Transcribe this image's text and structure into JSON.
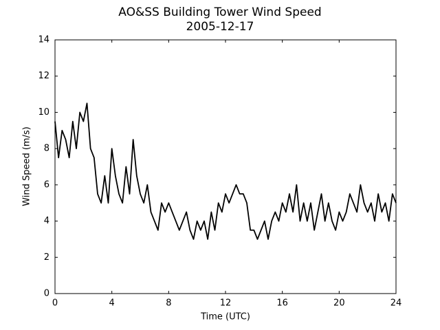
{
  "chart_data": {
    "type": "line",
    "title": "AO&SS Building Tower Wind Speed",
    "subtitle": "2005-12-17",
    "x_label": "Time (UTC)",
    "y_label": "Wind Speed (m/s)",
    "xlim": [
      0,
      24
    ],
    "xticks": [
      0,
      4,
      8,
      12,
      16,
      20,
      24
    ],
    "ylim": [
      0,
      14
    ],
    "yticks": [
      0,
      2,
      4,
      6,
      8,
      10,
      12,
      14
    ],
    "grid": false,
    "x": [
      0,
      0.25,
      0.5,
      0.75,
      1,
      1.25,
      1.5,
      1.75,
      2,
      2.25,
      2.5,
      2.75,
      3,
      3.25,
      3.5,
      3.75,
      4,
      4.25,
      4.5,
      4.75,
      5,
      5.25,
      5.5,
      5.75,
      6,
      6.25,
      6.5,
      6.75,
      7,
      7.25,
      7.5,
      7.75,
      8,
      8.25,
      8.5,
      8.75,
      9,
      9.25,
      9.5,
      9.75,
      10,
      10.25,
      10.5,
      10.75,
      11,
      11.25,
      11.5,
      11.75,
      12,
      12.25,
      12.5,
      12.75,
      13,
      13.25,
      13.5,
      13.75,
      14,
      14.25,
      14.5,
      14.75,
      15,
      15.25,
      15.5,
      15.75,
      16,
      16.25,
      16.5,
      16.75,
      17,
      17.25,
      17.5,
      17.75,
      18,
      18.25,
      18.5,
      18.75,
      19,
      19.25,
      19.5,
      19.75,
      20,
      20.25,
      20.5,
      20.75,
      21,
      21.25,
      21.5,
      21.75,
      22,
      22.25,
      22.5,
      22.75,
      23,
      23.25,
      23.5,
      23.75,
      24
    ],
    "series": [
      {
        "name": "Wind Speed",
        "color": "#000000",
        "values": [
          9.5,
          7.5,
          9.0,
          8.5,
          7.5,
          9.5,
          8.0,
          10.0,
          9.5,
          10.5,
          8.0,
          7.5,
          5.5,
          5.0,
          6.5,
          5.0,
          8.0,
          6.5,
          5.5,
          5.0,
          7.0,
          5.5,
          8.5,
          6.5,
          5.5,
          5.0,
          6.0,
          4.5,
          4.0,
          3.5,
          5.0,
          4.5,
          5.0,
          4.5,
          4.0,
          3.5,
          4.0,
          4.5,
          3.5,
          3.0,
          4.0,
          3.5,
          4.0,
          3.0,
          4.5,
          3.5,
          5.0,
          4.5,
          5.5,
          5.0,
          5.5,
          6.0,
          5.5,
          5.5,
          5.0,
          3.5,
          3.5,
          3.0,
          3.5,
          4.0,
          3.0,
          4.0,
          4.5,
          4.0,
          5.0,
          4.5,
          5.5,
          4.5,
          6.0,
          4.0,
          5.0,
          4.0,
          5.0,
          3.5,
          4.5,
          5.5,
          4.0,
          5.0,
          4.0,
          3.5,
          4.5,
          4.0,
          4.5,
          5.5,
          5.0,
          4.5,
          6.0,
          5.0,
          4.5,
          5.0,
          4.0,
          5.5,
          4.5,
          5.0,
          4.0,
          5.5,
          5.0
        ]
      }
    ]
  }
}
